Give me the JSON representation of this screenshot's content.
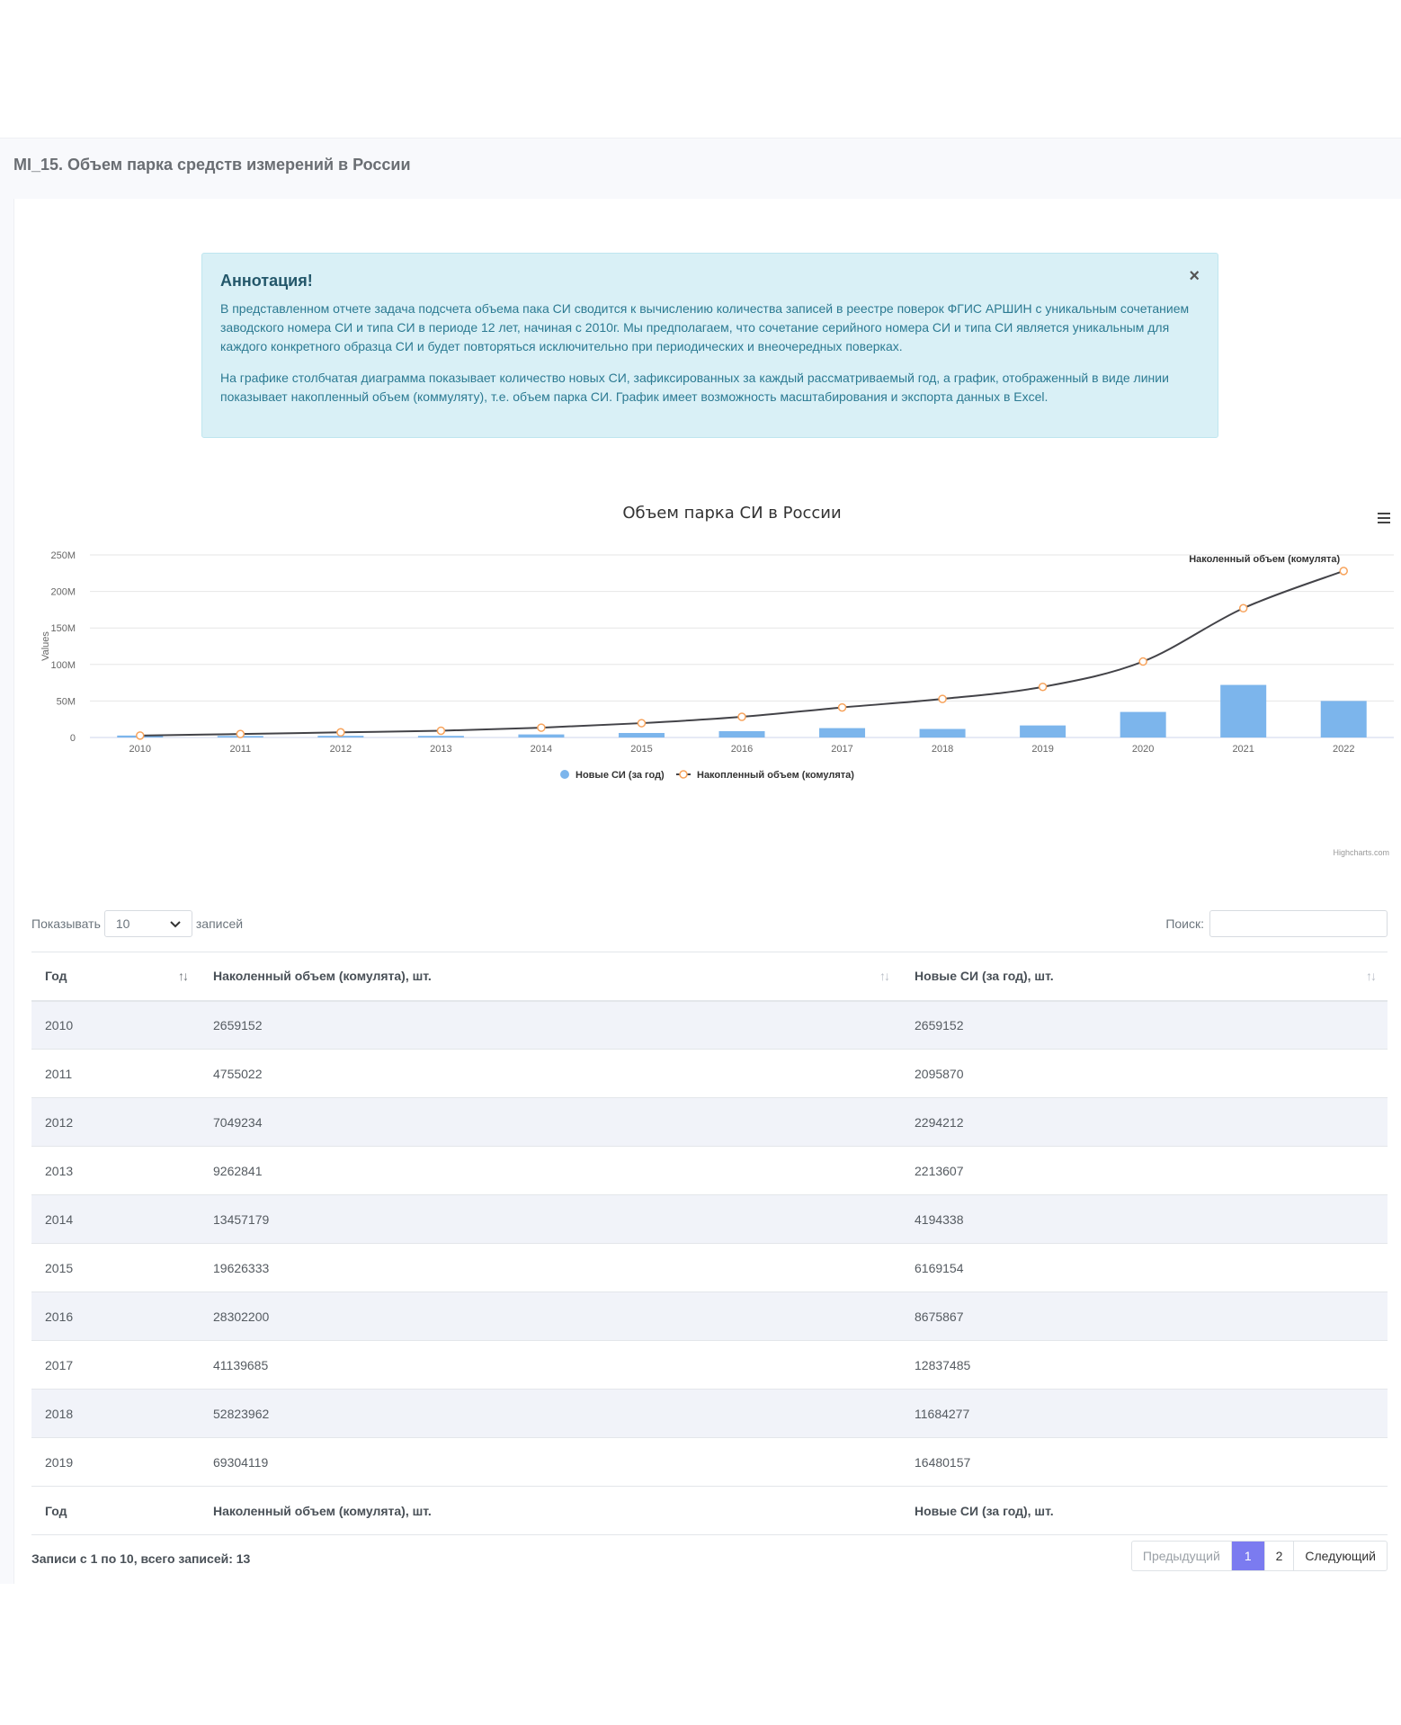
{
  "page": {
    "title": "MI_15. Объем парка средств измерений в России"
  },
  "alert": {
    "title": "Аннотация!",
    "close": "×",
    "p1": "В представленном отчете задача подсчета объема пака СИ сводится к вычислению количества записей в реестре поверок ФГИС АРШИН с уникальным сочетанием заводского номера СИ и типа СИ в периоде 12 лет, начиная с 2010г. Мы предполагаем, что сочетание серийного номера СИ и типа СИ является уникальным для каждого конкретного образца СИ и будет повторяться исключительно при периодических и внеочередных поверках.",
    "p2": "На графике столбчатая диаграмма показывает количество новых СИ, зафиксированных за каждый рассматриваемый год, а график, отображенный в виде линии показывает накопленный объем (коммуляту), т.е. объем парка СИ. График имеет возможность масштабирования и экспорта данных в Excel."
  },
  "chart_data": {
    "type": "bar",
    "title": "Объем парка СИ в России",
    "ylabel": "Values",
    "ylim": [
      0,
      250000000
    ],
    "yticks": [
      "0",
      "50M",
      "100M",
      "150M",
      "200M",
      "250M"
    ],
    "categories": [
      "2010",
      "2011",
      "2012",
      "2013",
      "2014",
      "2015",
      "2016",
      "2017",
      "2018",
      "2019",
      "2020",
      "2021",
      "2022"
    ],
    "series": [
      {
        "name": "Новые СИ (за год)",
        "type": "bar",
        "color": "#7cb5ec",
        "values": [
          2659152,
          2095870,
          2294212,
          2213607,
          4194338,
          6169154,
          8675867,
          12837485,
          11684277,
          16480157,
          35000000,
          72000000,
          50000000
        ]
      },
      {
        "name": "Накопленный объем (комулята)",
        "type": "line",
        "color": "#434348",
        "marker": "#f7a35c",
        "values": [
          2659152,
          4755022,
          7049234,
          9262841,
          13457179,
          19626333,
          28302200,
          41139685,
          52823962,
          69304119,
          104000000,
          177000000,
          228000000
        ]
      }
    ],
    "annotation": "Наколенный объем (комулята)",
    "credits": "Highcharts.com",
    "legend_position": "bottom-center",
    "grid": true
  },
  "table": {
    "length_label_pre": "Показывать",
    "length_value": "10",
    "length_label_post": "записей",
    "search_label": "Поиск:",
    "columns": [
      "Год",
      "Наколенный объем (комулята), шт.",
      "Новые СИ (за год), шт."
    ],
    "rows": [
      [
        "2010",
        "2659152",
        "2659152"
      ],
      [
        "2011",
        "4755022",
        "2095870"
      ],
      [
        "2012",
        "7049234",
        "2294212"
      ],
      [
        "2013",
        "9262841",
        "2213607"
      ],
      [
        "2014",
        "13457179",
        "4194338"
      ],
      [
        "2015",
        "19626333",
        "6169154"
      ],
      [
        "2016",
        "28302200",
        "8675867"
      ],
      [
        "2017",
        "41139685",
        "12837485"
      ],
      [
        "2018",
        "52823962",
        "11684277"
      ],
      [
        "2019",
        "69304119",
        "16480157"
      ]
    ],
    "info": "Записи с 1 по 10, всего записей: 13",
    "pager": {
      "prev": "Предыдущий",
      "p1": "1",
      "p2": "2",
      "next": "Следующий"
    }
  }
}
